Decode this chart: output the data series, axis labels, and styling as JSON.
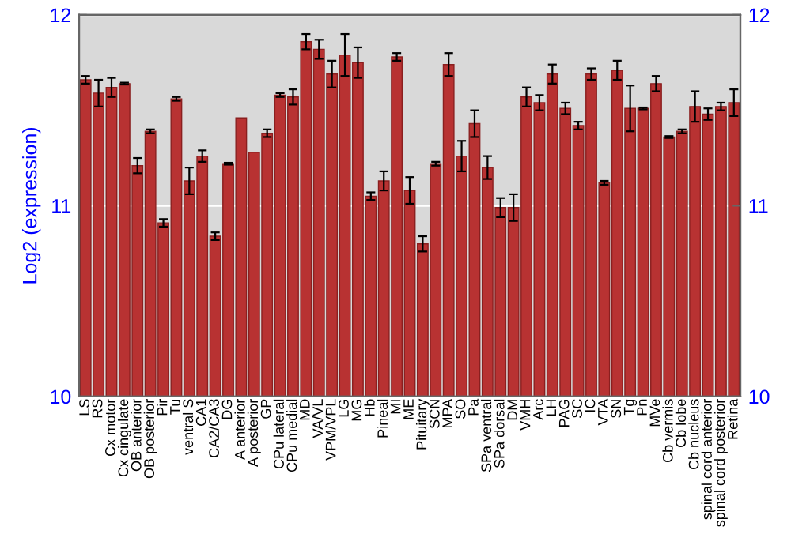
{
  "chart_data": {
    "type": "bar",
    "ylabel": "Log2 (expression)",
    "categories": [
      "LS",
      "RS",
      "Cx motor",
      "Cx cingulate",
      "OB anterior",
      "OB posterior",
      "Pir",
      "Tu",
      "ventral S",
      "CA1",
      "CA2/CA3",
      "DG",
      "A anterior",
      "A posterior",
      "GP",
      "CPu lateral",
      "CPu medial",
      "MD",
      "VA/VL",
      "VPM/VPL",
      "LG",
      "MG",
      "Hb",
      "Pineal",
      "MI",
      "ME",
      "Pituitary",
      "SCN",
      "MPA",
      "SO",
      "Pa",
      "SPa ventral",
      "SPa dorsal",
      "DM",
      "VMH",
      "Arc",
      "LH",
      "PAG",
      "SC",
      "IC",
      "VTA",
      "SN",
      "Tg",
      "Pn",
      "MVe",
      "Cb vermis",
      "Cb lobe",
      "Cb nucleus",
      "spinal cord anterior",
      "spinal cord posterior",
      "Retina"
    ],
    "values": [
      11.66,
      11.59,
      11.62,
      11.64,
      11.21,
      11.39,
      10.91,
      11.56,
      11.13,
      11.26,
      10.84,
      11.22,
      11.46,
      11.28,
      11.38,
      11.58,
      11.57,
      11.86,
      11.82,
      11.69,
      11.79,
      11.75,
      11.05,
      11.13,
      11.78,
      11.08,
      10.8,
      11.22,
      11.74,
      11.26,
      11.43,
      11.2,
      10.99,
      10.99,
      11.57,
      11.54,
      11.69,
      11.51,
      11.42,
      11.69,
      11.12,
      11.71,
      11.51,
      11.51,
      11.64,
      11.36,
      11.39,
      11.52,
      11.48,
      11.52,
      11.54
    ],
    "errors": [
      0.02,
      0.07,
      0.05,
      0.005,
      0.04,
      0.01,
      0.02,
      0.01,
      0.07,
      0.03,
      0.02,
      0.005,
      null,
      null,
      0.02,
      0.01,
      0.04,
      0.04,
      0.05,
      0.07,
      0.11,
      0.08,
      0.02,
      0.05,
      0.02,
      0.07,
      0.04,
      0.01,
      0.06,
      0.08,
      0.07,
      0.06,
      0.05,
      0.07,
      0.05,
      0.04,
      0.05,
      0.03,
      0.02,
      0.03,
      0.01,
      0.05,
      0.12,
      0.005,
      0.04,
      0.005,
      0.01,
      0.08,
      0.03,
      0.02,
      0.07
    ],
    "color": "#b83232",
    "ylim": [
      10,
      12
    ],
    "yticks": [
      10,
      11,
      12
    ],
    "y2lim": [
      10,
      12
    ],
    "y2ticks": [
      10,
      11,
      12
    ],
    "grid": "y"
  }
}
